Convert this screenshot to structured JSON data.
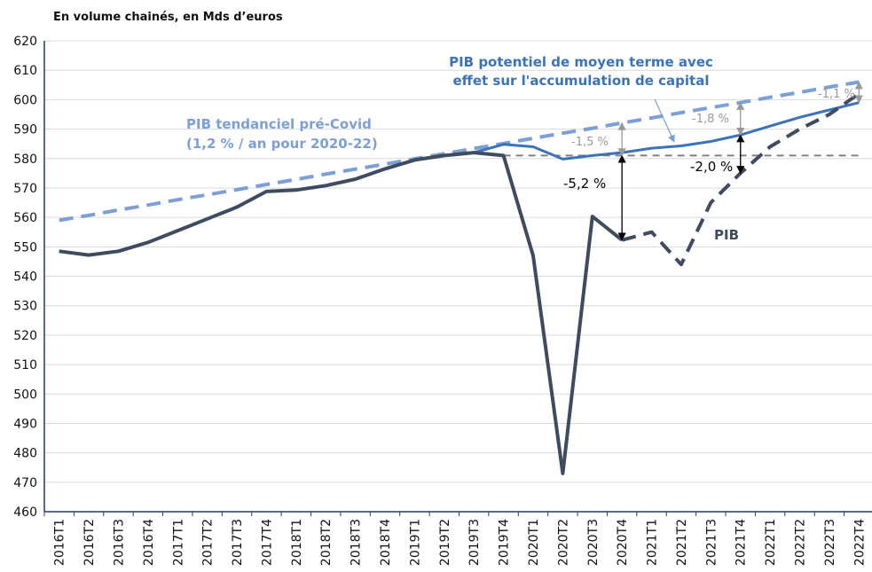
{
  "chart_data": {
    "type": "line",
    "title": "En volume chainés, en Mds d’euros",
    "categories": [
      "2016T1",
      "2016T2",
      "2016T3",
      "2016T4",
      "2017T1",
      "2017T2",
      "2017T3",
      "2017T4",
      "2018T1",
      "2018T2",
      "2018T3",
      "2018T4",
      "2019T1",
      "2019T2",
      "2019T3",
      "2019T4",
      "2020T1",
      "2020T2",
      "2020T3",
      "2020T4",
      "2021T1",
      "2021T2",
      "2021T3",
      "2021T4",
      "2022T1",
      "2022T2",
      "2022T3",
      "2022T4"
    ],
    "ylim": [
      460,
      620
    ],
    "yticks": [
      460,
      470,
      480,
      490,
      500,
      510,
      520,
      530,
      540,
      550,
      560,
      570,
      580,
      590,
      600,
      610,
      620
    ],
    "grid": true,
    "series": [
      {
        "color": "#7b9fd6",
        "dashed": true,
        "values": [
          559,
          560.7,
          562.5,
          564.2,
          566,
          567.7,
          569.4,
          571.2,
          572.9,
          574.7,
          576.4,
          578.1,
          579.9,
          581.6,
          583.4,
          585.1,
          586.9,
          588.6,
          590.3,
          592.1,
          593.8,
          595.6,
          597.3,
          599,
          600.8,
          602.5,
          604.3,
          606
        ]
      },
      {
        "color": "#808080",
        "dashed": true,
        "values": [
          null,
          null,
          null,
          null,
          null,
          null,
          null,
          null,
          null,
          null,
          null,
          null,
          null,
          null,
          null,
          581,
          581,
          581,
          581,
          581,
          581,
          581,
          581,
          581,
          581,
          581,
          581,
          581
        ]
      },
      {
        "color": "#3b73b9",
        "dashed": false,
        "values": [
          null,
          null,
          null,
          null,
          null,
          null,
          null,
          null,
          null,
          null,
          null,
          null,
          null,
          null,
          582,
          584.8,
          584,
          579.8,
          581,
          582,
          583.5,
          584.3,
          585.8,
          588,
          591,
          594,
          596.5,
          599
        ]
      },
      {
        "color": "#3f4b5e",
        "dashed": false,
        "values": [
          548.5,
          547.2,
          548.5,
          551.5,
          555.5,
          559.5,
          563.5,
          568.8,
          569.3,
          570.8,
          573,
          576.5,
          579.5,
          581,
          582,
          581,
          547,
          473,
          560.3,
          552.3,
          null,
          null,
          null,
          null,
          null,
          null,
          null,
          null
        ]
      },
      {
        "color": "#3f4b5e",
        "dashed": true,
        "values": [
          null,
          null,
          null,
          null,
          null,
          null,
          null,
          null,
          null,
          null,
          null,
          null,
          null,
          null,
          null,
          null,
          null,
          null,
          null,
          552.3,
          555,
          544,
          565,
          575,
          584,
          590,
          595,
          602
        ]
      }
    ],
    "annotations": [
      "PIB potentiel de moyen terme avec",
      "effet sur l'accumulation de capital",
      "PIB  tendanciel  pré-Covid",
      "(1,2 %  / an  pour 2020-22)",
      "PIB",
      "-5,2 %",
      "-2,0 %",
      "-1,5 %",
      "-1,8 %",
      "-1,1 %"
    ]
  }
}
